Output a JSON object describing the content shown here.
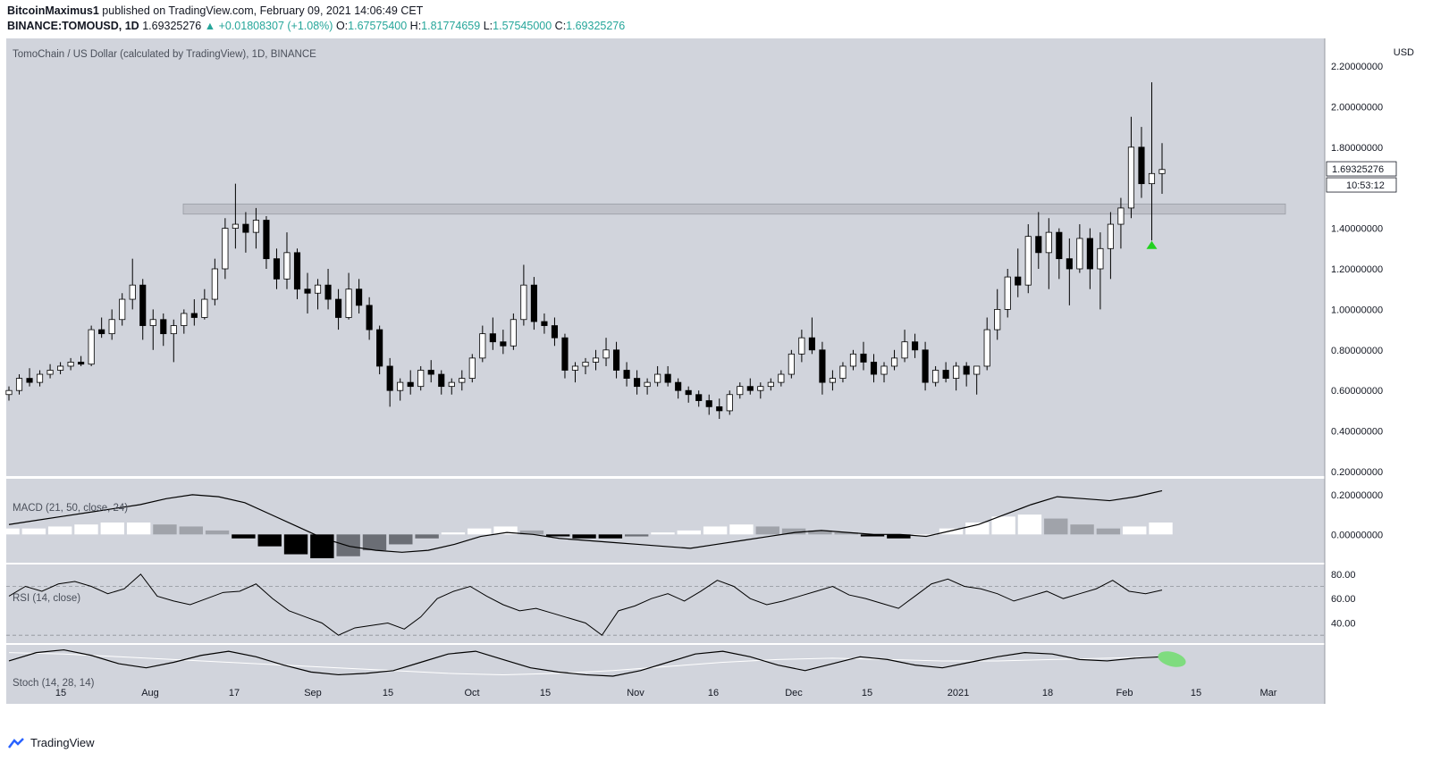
{
  "header": {
    "author": "BitcoinMaximus1",
    "published_text": "published on TradingView.com, February 09, 2021 14:06:49 CET",
    "symbol": "BINANCE:TOMOUSD, 1D",
    "last": "1.69325276",
    "change": "▲ +0.01808307 (+1.08%)",
    "open_label": "O:",
    "open": "1.67575400",
    "high_label": "H:",
    "high": "1.81774659",
    "low_label": "L:",
    "low": "1.57545000",
    "close_label": "C:",
    "close": "1.69325276"
  },
  "footer": {
    "brand": "TradingView"
  },
  "colors": {
    "pane_bg": "#d1d4dc",
    "up_fill": "#ffffff",
    "down_fill": "#000000",
    "zone": "#bcbfc6",
    "marker": "#22d11f",
    "stoch_highlight": "#7fdc7f"
  },
  "chart_data": [
    {
      "type": "candlestick",
      "title": "TomoChain / US Dollar (calculated by TradingView), 1D, BINANCE",
      "currency": "USD",
      "y_ticks": [
        "2.20000000",
        "2.00000000",
        "1.80000000",
        "1.60000000",
        "1.40000000",
        "1.20000000",
        "1.00000000",
        "0.80000000",
        "0.60000000",
        "0.40000000",
        "0.20000000"
      ],
      "ylim": [
        0.2,
        2.2
      ],
      "price_label": "1.69325276",
      "countdown": "10:53:12",
      "resistance_zone": [
        1.47,
        1.52
      ],
      "x_ticks": [
        "15",
        "Aug",
        "17",
        "Sep",
        "15",
        "Oct",
        "15",
        "Nov",
        "16",
        "Dec",
        "15",
        "2021",
        "18",
        "Feb",
        "15",
        "Mar"
      ],
      "candles_approx": [
        [
          0.58,
          0.62,
          0.55,
          0.6
        ],
        [
          0.6,
          0.68,
          0.58,
          0.66
        ],
        [
          0.66,
          0.71,
          0.62,
          0.64
        ],
        [
          0.64,
          0.7,
          0.62,
          0.68
        ],
        [
          0.68,
          0.73,
          0.66,
          0.7
        ],
        [
          0.7,
          0.74,
          0.68,
          0.72
        ],
        [
          0.72,
          0.76,
          0.7,
          0.74
        ],
        [
          0.74,
          0.77,
          0.72,
          0.73
        ],
        [
          0.73,
          0.92,
          0.72,
          0.9
        ],
        [
          0.9,
          0.96,
          0.86,
          0.88
        ],
        [
          0.88,
          1.0,
          0.85,
          0.95
        ],
        [
          0.95,
          1.08,
          0.92,
          1.05
        ],
        [
          1.05,
          1.25,
          1.0,
          1.12
        ],
        [
          1.12,
          1.15,
          0.85,
          0.92
        ],
        [
          0.92,
          1.0,
          0.8,
          0.95
        ],
        [
          0.95,
          0.98,
          0.82,
          0.88
        ],
        [
          0.88,
          0.95,
          0.74,
          0.92
        ],
        [
          0.92,
          1.0,
          0.88,
          0.98
        ],
        [
          0.98,
          1.05,
          0.92,
          0.96
        ],
        [
          0.96,
          1.1,
          0.95,
          1.05
        ],
        [
          1.05,
          1.25,
          1.02,
          1.2
        ],
        [
          1.2,
          1.45,
          1.15,
          1.4
        ],
        [
          1.4,
          1.62,
          1.3,
          1.42
        ],
        [
          1.42,
          1.48,
          1.28,
          1.38
        ],
        [
          1.38,
          1.5,
          1.3,
          1.44
        ],
        [
          1.44,
          1.46,
          1.2,
          1.25
        ],
        [
          1.25,
          1.3,
          1.1,
          1.15
        ],
        [
          1.15,
          1.38,
          1.1,
          1.28
        ],
        [
          1.28,
          1.3,
          1.05,
          1.1
        ],
        [
          1.1,
          1.18,
          0.98,
          1.08
        ],
        [
          1.08,
          1.15,
          1.0,
          1.12
        ],
        [
          1.12,
          1.2,
          1.0,
          1.05
        ],
        [
          1.05,
          1.1,
          0.9,
          0.96
        ],
        [
          0.96,
          1.18,
          0.95,
          1.1
        ],
        [
          1.1,
          1.15,
          0.98,
          1.02
        ],
        [
          1.02,
          1.06,
          0.85,
          0.9
        ],
        [
          0.9,
          0.92,
          0.68,
          0.72
        ],
        [
          0.72,
          0.76,
          0.52,
          0.6
        ],
        [
          0.6,
          0.66,
          0.55,
          0.64
        ],
        [
          0.64,
          0.7,
          0.58,
          0.62
        ],
        [
          0.62,
          0.72,
          0.6,
          0.7
        ],
        [
          0.7,
          0.75,
          0.64,
          0.68
        ],
        [
          0.68,
          0.7,
          0.58,
          0.62
        ],
        [
          0.62,
          0.66,
          0.58,
          0.64
        ],
        [
          0.64,
          0.7,
          0.6,
          0.66
        ],
        [
          0.66,
          0.78,
          0.64,
          0.76
        ],
        [
          0.76,
          0.92,
          0.74,
          0.88
        ],
        [
          0.88,
          0.96,
          0.8,
          0.84
        ],
        [
          0.84,
          0.9,
          0.78,
          0.82
        ],
        [
          0.82,
          0.98,
          0.8,
          0.95
        ],
        [
          0.95,
          1.22,
          0.92,
          1.12
        ],
        [
          1.12,
          1.16,
          0.9,
          0.94
        ],
        [
          0.94,
          0.98,
          0.88,
          0.92
        ],
        [
          0.92,
          0.96,
          0.82,
          0.86
        ],
        [
          0.86,
          0.88,
          0.66,
          0.7
        ],
        [
          0.7,
          0.74,
          0.64,
          0.72
        ],
        [
          0.72,
          0.76,
          0.68,
          0.74
        ],
        [
          0.74,
          0.8,
          0.7,
          0.76
        ],
        [
          0.76,
          0.86,
          0.72,
          0.8
        ],
        [
          0.8,
          0.84,
          0.66,
          0.7
        ],
        [
          0.7,
          0.74,
          0.62,
          0.66
        ],
        [
          0.66,
          0.7,
          0.58,
          0.62
        ],
        [
          0.62,
          0.66,
          0.58,
          0.64
        ],
        [
          0.64,
          0.72,
          0.62,
          0.68
        ],
        [
          0.68,
          0.72,
          0.62,
          0.64
        ],
        [
          0.64,
          0.66,
          0.56,
          0.6
        ],
        [
          0.6,
          0.62,
          0.54,
          0.58
        ],
        [
          0.58,
          0.6,
          0.52,
          0.55
        ],
        [
          0.55,
          0.58,
          0.48,
          0.52
        ],
        [
          0.52,
          0.56,
          0.46,
          0.5
        ],
        [
          0.5,
          0.6,
          0.48,
          0.58
        ],
        [
          0.58,
          0.64,
          0.56,
          0.62
        ],
        [
          0.62,
          0.66,
          0.58,
          0.6
        ],
        [
          0.6,
          0.64,
          0.56,
          0.62
        ],
        [
          0.62,
          0.66,
          0.6,
          0.64
        ],
        [
          0.64,
          0.7,
          0.62,
          0.68
        ],
        [
          0.68,
          0.8,
          0.66,
          0.78
        ],
        [
          0.78,
          0.9,
          0.74,
          0.86
        ],
        [
          0.86,
          0.96,
          0.78,
          0.8
        ],
        [
          0.8,
          0.84,
          0.58,
          0.64
        ],
        [
          0.64,
          0.7,
          0.6,
          0.66
        ],
        [
          0.66,
          0.74,
          0.64,
          0.72
        ],
        [
          0.72,
          0.8,
          0.7,
          0.78
        ],
        [
          0.78,
          0.84,
          0.7,
          0.74
        ],
        [
          0.74,
          0.78,
          0.64,
          0.68
        ],
        [
          0.68,
          0.74,
          0.64,
          0.72
        ],
        [
          0.72,
          0.8,
          0.7,
          0.76
        ],
        [
          0.76,
          0.9,
          0.74,
          0.84
        ],
        [
          0.84,
          0.88,
          0.76,
          0.8
        ],
        [
          0.8,
          0.84,
          0.6,
          0.64
        ],
        [
          0.64,
          0.72,
          0.62,
          0.7
        ],
        [
          0.7,
          0.74,
          0.64,
          0.66
        ],
        [
          0.66,
          0.74,
          0.6,
          0.72
        ],
        [
          0.72,
          0.74,
          0.62,
          0.68
        ],
        [
          0.68,
          0.72,
          0.58,
          0.72
        ],
        [
          0.72,
          0.96,
          0.7,
          0.9
        ],
        [
          0.9,
          1.1,
          0.85,
          1.0
        ],
        [
          1.0,
          1.2,
          0.96,
          1.16
        ],
        [
          1.16,
          1.3,
          1.06,
          1.12
        ],
        [
          1.12,
          1.42,
          1.08,
          1.36
        ],
        [
          1.36,
          1.48,
          1.2,
          1.28
        ],
        [
          1.28,
          1.45,
          1.1,
          1.38
        ],
        [
          1.38,
          1.4,
          1.15,
          1.25
        ],
        [
          1.25,
          1.35,
          1.02,
          1.2
        ],
        [
          1.2,
          1.42,
          1.18,
          1.35
        ],
        [
          1.35,
          1.4,
          1.1,
          1.2
        ],
        [
          1.2,
          1.38,
          1.0,
          1.3
        ],
        [
          1.3,
          1.48,
          1.15,
          1.42
        ],
        [
          1.42,
          1.55,
          1.3,
          1.5
        ],
        [
          1.5,
          1.95,
          1.45,
          1.8
        ],
        [
          1.8,
          1.9,
          1.55,
          1.62
        ],
        [
          1.62,
          2.12,
          1.34,
          1.67
        ],
        [
          1.67,
          1.82,
          1.57,
          1.69
        ]
      ]
    },
    {
      "type": "line",
      "title": "MACD (21, 50, close, 24)",
      "y_ticks": [
        "0.20000000",
        "0.00000000"
      ],
      "ylim": [
        -0.12,
        0.24
      ],
      "macd_approx": [
        0.05,
        0.07,
        0.09,
        0.11,
        0.13,
        0.15,
        0.18,
        0.2,
        0.19,
        0.16,
        0.1,
        0.04,
        -0.02,
        -0.06,
        -0.08,
        -0.09,
        -0.08,
        -0.05,
        -0.01,
        0.01,
        0.0,
        -0.02,
        -0.03,
        -0.04,
        -0.05,
        -0.06,
        -0.07,
        -0.05,
        -0.03,
        -0.01,
        0.01,
        0.02,
        0.01,
        0.0,
        0.0,
        -0.01,
        0.02,
        0.05,
        0.1,
        0.15,
        0.19,
        0.18,
        0.17,
        0.19,
        0.22
      ],
      "hist_approx": [
        0.03,
        0.03,
        0.04,
        0.05,
        0.06,
        0.06,
        0.05,
        0.04,
        0.02,
        -0.02,
        -0.06,
        -0.1,
        -0.12,
        -0.11,
        -0.08,
        -0.05,
        -0.02,
        0.01,
        0.03,
        0.04,
        0.02,
        -0.01,
        -0.02,
        -0.02,
        -0.01,
        0.01,
        0.02,
        0.04,
        0.05,
        0.04,
        0.03,
        0.02,
        0.01,
        -0.01,
        -0.02,
        0.0,
        0.03,
        0.06,
        0.09,
        0.1,
        0.08,
        0.05,
        0.03,
        0.04,
        0.06
      ]
    },
    {
      "type": "line",
      "title": "RSI (14, close)",
      "y_ticks": [
        "80.00",
        "60.00",
        "40.00"
      ],
      "ylim": [
        25,
        85
      ],
      "rsi_approx": [
        62,
        70,
        66,
        72,
        74,
        70,
        64,
        68,
        80,
        62,
        58,
        55,
        60,
        65,
        66,
        72,
        60,
        50,
        45,
        40,
        30,
        36,
        38,
        40,
        35,
        45,
        60,
        66,
        70,
        62,
        55,
        50,
        52,
        48,
        44,
        40,
        30,
        50,
        54,
        60,
        64,
        58,
        66,
        75,
        70,
        60,
        55,
        58,
        62,
        66,
        70,
        63,
        60,
        56,
        52,
        62,
        72,
        76,
        70,
        68,
        64,
        58,
        62,
        66,
        60,
        64,
        68,
        75,
        66,
        64,
        67
      ]
    },
    {
      "type": "line",
      "title": "Stoch (14, 28, 14)",
      "stoch_approx": [
        0.55,
        0.85,
        0.95,
        0.75,
        0.45,
        0.3,
        0.5,
        0.75,
        0.9,
        0.7,
        0.4,
        0.15,
        0.05,
        0.1,
        0.2,
        0.5,
        0.8,
        0.9,
        0.6,
        0.3,
        0.15,
        0.05,
        0.0,
        0.2,
        0.5,
        0.8,
        0.9,
        0.7,
        0.4,
        0.2,
        0.45,
        0.7,
        0.6,
        0.4,
        0.3,
        0.5,
        0.7,
        0.85,
        0.8,
        0.6,
        0.55,
        0.65,
        0.7
      ],
      "signal_approx": [
        0.85,
        0.8,
        0.7,
        0.6,
        0.5,
        0.4,
        0.3,
        0.2,
        0.1,
        0.05,
        0.1,
        0.2,
        0.35,
        0.5,
        0.6,
        0.65,
        0.6,
        0.55,
        0.55,
        0.6,
        0.65,
        0.7
      ]
    }
  ]
}
